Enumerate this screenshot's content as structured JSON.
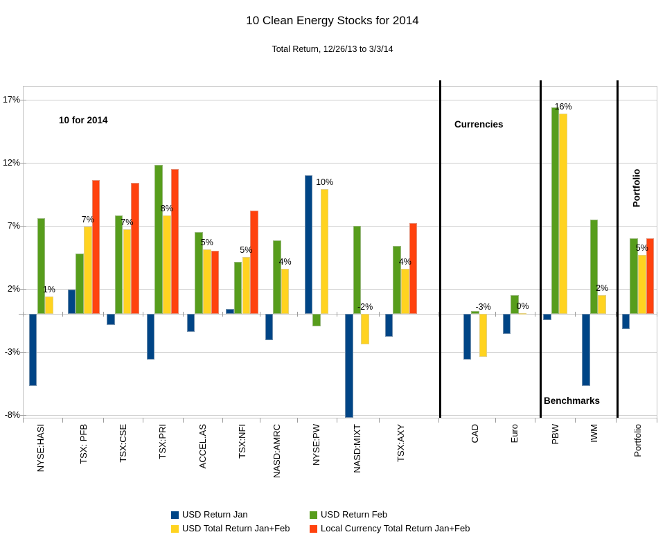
{
  "title": "10 Clean Energy Stocks for 2014",
  "subtitle": "Total Return, 12/26/13 to 3/3/14",
  "chart_data": {
    "type": "bar",
    "title": "10 Clean Energy Stocks for 2014",
    "subtitle": "Total Return, 12/26/13 to 3/3/14",
    "ylim": [
      -8.35,
      18.1
    ],
    "grid": true,
    "legend_position": "bottom",
    "yticks": [
      {
        "value": 17,
        "label": "17%"
      },
      {
        "value": 12,
        "label": "12%"
      },
      {
        "value": 7,
        "label": "7%"
      },
      {
        "value": 2,
        "label": "2%"
      },
      {
        "value": -3,
        "label": "-3%"
      },
      {
        "value": -8,
        "label": "-8%"
      }
    ],
    "series": [
      {
        "key": "jan",
        "name": "USD Return Jan",
        "color": "#004586"
      },
      {
        "key": "feb",
        "name": "USD Return Feb",
        "color": "#579D1C"
      },
      {
        "key": "usd_total",
        "name": "USD Total Return Jan+Feb",
        "color": "#FFD320"
      },
      {
        "key": "local_total",
        "name": "Local Currency Total Return Jan+Feb",
        "color": "#FF420E"
      }
    ],
    "categories": [
      {
        "label": "NYSE:HASI",
        "jan": -5.7,
        "feb": 7.6,
        "usd_total": 1.4,
        "local_total": null,
        "usd_total_label": "1%"
      },
      {
        "label": "TSX: PFB",
        "jan": 1.9,
        "feb": 4.8,
        "usd_total": 6.9,
        "local_total": 10.6,
        "usd_total_label": "7%"
      },
      {
        "label": "TSX:CSE",
        "jan": -0.9,
        "feb": 7.8,
        "usd_total": 6.7,
        "local_total": 10.4,
        "usd_total_label": "7%"
      },
      {
        "label": "TSX:PRI",
        "jan": -3.6,
        "feb": 11.8,
        "usd_total": 7.8,
        "local_total": 11.5,
        "usd_total_label": "8%"
      },
      {
        "label": "ACCEL.AS",
        "jan": -1.4,
        "feb": 6.5,
        "usd_total": 5.1,
        "local_total": 5.0,
        "usd_total_label": "5%"
      },
      {
        "label": "TSX:NFI",
        "jan": 0.4,
        "feb": 4.1,
        "usd_total": 4.5,
        "local_total": 8.2,
        "usd_total_label": "5%"
      },
      {
        "label": "NASD:AMRC",
        "jan": -2.1,
        "feb": 5.8,
        "usd_total": 3.6,
        "local_total": null,
        "usd_total_label": "4%"
      },
      {
        "label": "NYSE:PW",
        "jan": 11.0,
        "feb": -1.0,
        "usd_total": 9.9,
        "local_total": null,
        "usd_total_label": "10%"
      },
      {
        "label": "NASD:MIXT",
        "jan": -8.35,
        "feb": 7.0,
        "usd_total": -2.4,
        "local_total": null,
        "usd_total_label": "-2%"
      },
      {
        "label": "TSX:AXY",
        "jan": -1.8,
        "feb": 5.4,
        "usd_total": 3.6,
        "local_total": 7.2,
        "usd_total_label": "4%"
      },
      {
        "label": "CAD",
        "jan": -3.6,
        "feb": 0.2,
        "usd_total": -3.4,
        "local_total": null,
        "usd_total_label": "-3%"
      },
      {
        "label": "Euro",
        "jan": -1.6,
        "feb": 1.5,
        "usd_total": 0.05,
        "local_total": null,
        "usd_total_label": "0%"
      },
      {
        "label": "PBW",
        "jan": -0.5,
        "feb": 16.4,
        "usd_total": 15.9,
        "local_total": null,
        "usd_total_label": "16%"
      },
      {
        "label": "IWM",
        "jan": -5.7,
        "feb": 7.5,
        "usd_total": 1.5,
        "local_total": null,
        "usd_total_label": "2%"
      },
      {
        "label": "Portfolio",
        "jan": -1.2,
        "feb": 6.0,
        "usd_total": 4.7,
        "local_total": 6.0,
        "usd_total_label": "5%"
      }
    ],
    "annotations": [
      {
        "id": "ann-10-for-2014",
        "text": "10 for 2014"
      },
      {
        "id": "ann-currencies",
        "text": "Currencies"
      },
      {
        "id": "ann-benchmarks",
        "text": "Benchmarks"
      },
      {
        "id": "ann-portfolio",
        "text": "Portfolio"
      }
    ],
    "sections": [
      {
        "label": "10 for 2014",
        "categories": [
          "NYSE:HASI",
          "TSX: PFB",
          "TSX:CSE",
          "TSX:PRI",
          "ACCEL.AS",
          "TSX:NFI",
          "NASD:AMRC",
          "NYSE:PW",
          "NASD:MIXT",
          "TSX:AXY"
        ]
      },
      {
        "label": "Currencies",
        "categories": [
          "CAD",
          "Euro"
        ]
      },
      {
        "label": "Benchmarks",
        "categories": [
          "PBW",
          "IWM"
        ]
      },
      {
        "label": "Portfolio",
        "categories": [
          "Portfolio"
        ]
      }
    ],
    "colors": {
      "jan_blue": "#004586",
      "feb_green": "#579D1C",
      "total_yellow": "#FFD320",
      "local_red": "#FF420E",
      "gridline": "#cdcdcd",
      "divider": "#000000"
    }
  },
  "legend": {
    "items": [
      {
        "label": "USD Return Jan"
      },
      {
        "label": "USD Return Feb"
      },
      {
        "label": "USD Total Return Jan+Feb"
      },
      {
        "label": "Local Currency Total Return Jan+Feb"
      }
    ]
  }
}
